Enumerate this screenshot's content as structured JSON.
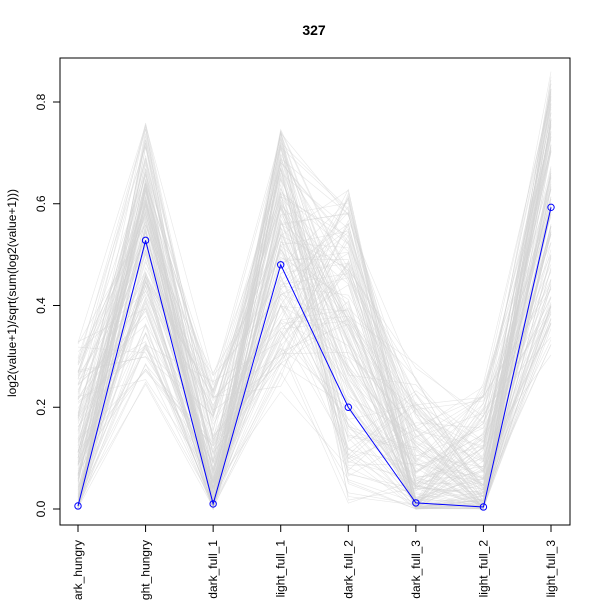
{
  "chart_data": {
    "type": "line",
    "title": "327",
    "xlabel": "",
    "ylabel": "log2(value+1)/sqrt(sum(log2(value+1)))",
    "categories": [
      "dark_hungry",
      "light_hungry",
      "dark_full_1",
      "light_full_1",
      "dark_full_2",
      "dark_full_3",
      "light_full_2",
      "light_full_3"
    ],
    "ylim": [
      0,
      0.85
    ],
    "yticks": [
      0.0,
      0.2,
      0.4,
      0.6,
      0.8
    ],
    "ytick_labels": [
      "0.0",
      "0.2",
      "0.4",
      "0.6",
      "0.8"
    ],
    "grid": false,
    "legend": "none",
    "series": [
      {
        "values": [
          0.006,
          0.528,
          0.01,
          0.48,
          0.2,
          0.012,
          0.004,
          0.593
        ],
        "color": "#0000ff",
        "highlight": true
      }
    ],
    "background_profiles": {
      "color": "#d3d3d3",
      "count": 150,
      "ranges": [
        [
          0.0,
          0.33
        ],
        [
          0.23,
          0.76
        ],
        [
          0.0,
          0.27
        ],
        [
          0.23,
          0.75
        ],
        [
          0.0,
          0.63
        ],
        [
          0.0,
          0.3
        ],
        [
          0.0,
          0.25
        ],
        [
          0.3,
          0.86
        ]
      ]
    }
  }
}
